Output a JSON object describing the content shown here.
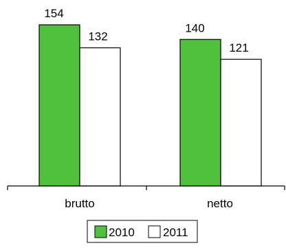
{
  "chart_data": {
    "type": "bar",
    "categories": [
      "brutto",
      "netto"
    ],
    "series": [
      {
        "name": "2010",
        "values": [
          154,
          140
        ],
        "color": "#4fc13a"
      },
      {
        "name": "2011",
        "values": [
          132,
          121
        ],
        "color": "#ffffff"
      }
    ],
    "data_labels": true,
    "ylim": [
      0,
      154
    ],
    "grid": false,
    "legend": "bottom-center",
    "bar_stroke": "#000000"
  }
}
